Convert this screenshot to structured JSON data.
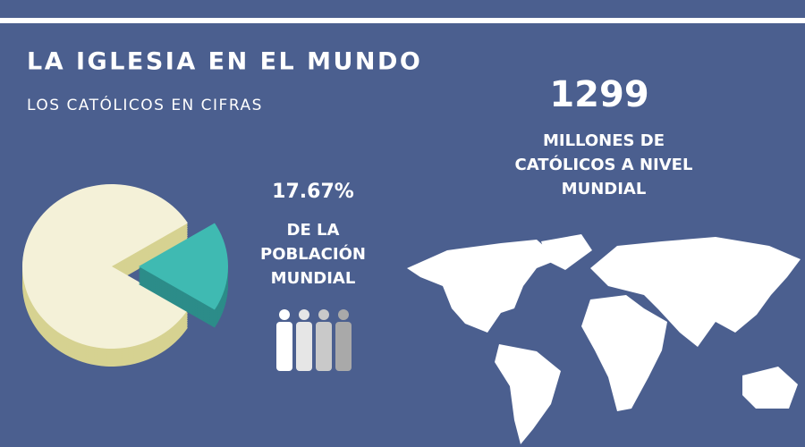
{
  "header": {
    "title": "LA IGLESIA EN EL MUNDO",
    "subtitle": "LOS CATÓLICOS EN CIFRAS"
  },
  "catholics": {
    "value": 1299,
    "lines": [
      "MILLONES DE",
      "CATÓLICOS A NIVEL",
      "MUNDIAL"
    ]
  },
  "share": {
    "value": 17.67,
    "value_label": "17.67%",
    "lines": [
      "DE LA",
      "POBLACIÓN",
      "MUNDIAL"
    ]
  }
}
